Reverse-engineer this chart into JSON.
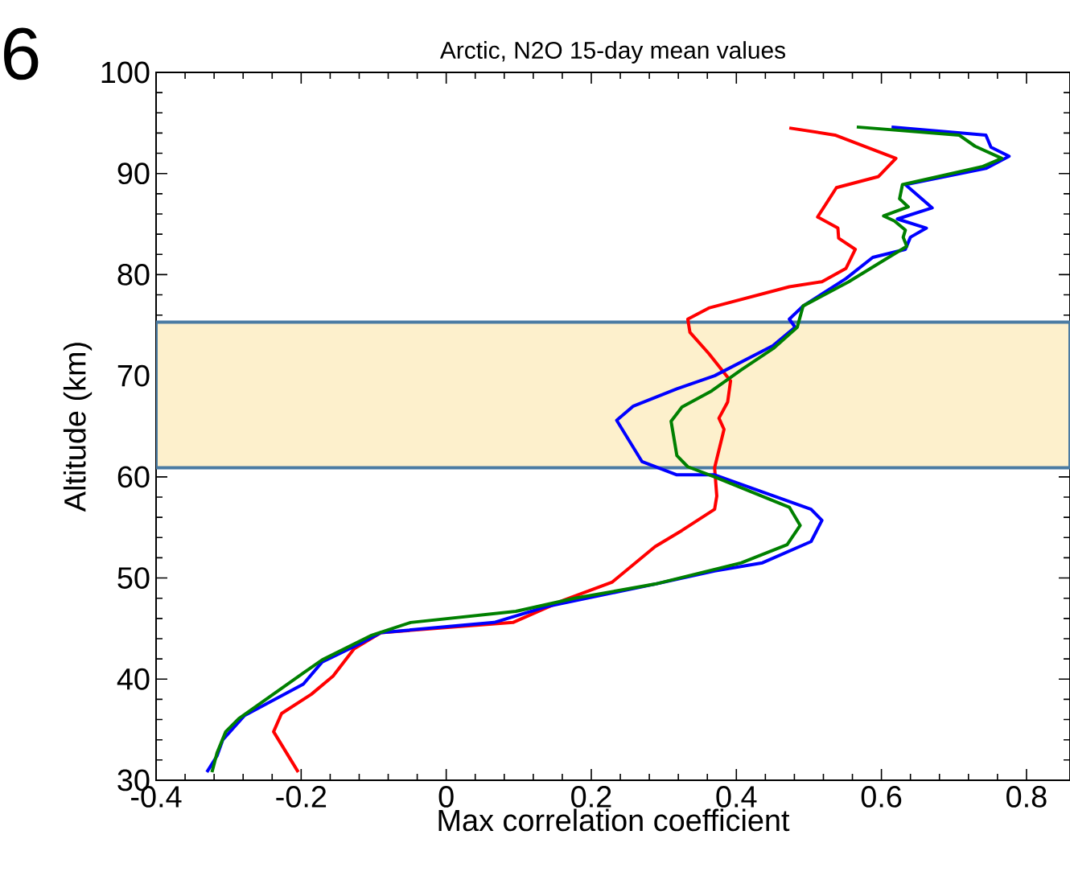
{
  "chart_data": {
    "type": "line",
    "title": "Arctic, N2O 15-day mean values",
    "xlabel": "Max correlation coefficient",
    "ylabel": "Altitude (km)",
    "xlim": [
      -0.4,
      0.86
    ],
    "ylim": [
      30,
      100
    ],
    "xticks": [
      -0.4,
      -0.2,
      0,
      0.2,
      0.4,
      0.6,
      0.8
    ],
    "yticks": [
      30,
      40,
      50,
      60,
      70,
      80,
      90,
      100
    ],
    "annotations": [
      "6"
    ],
    "bands": [
      {
        "axis": "y",
        "from": 60.9,
        "to": 75.3,
        "color": "#fdf0cc"
      }
    ],
    "series": [
      {
        "color": "#ff0000",
        "x": [
          0.473,
          0.536,
          0.62,
          0.596,
          0.538,
          0.512,
          0.54,
          0.541,
          0.564,
          0.551,
          0.518,
          0.473,
          0.362,
          0.333,
          0.336,
          0.362,
          0.392,
          0.388,
          0.376,
          0.383,
          0.37,
          0.373,
          0.37,
          0.325,
          0.288,
          0.229,
          0.162,
          0.092,
          -0.09,
          -0.127,
          -0.156,
          -0.186,
          -0.227,
          -0.238,
          -0.204
        ],
        "values": [
          94.5,
          93.8,
          91.5,
          89.7,
          88.6,
          85.7,
          84.6,
          83.6,
          82.5,
          80.6,
          79.3,
          78.8,
          76.7,
          75.6,
          74.3,
          72.2,
          69.5,
          67.4,
          65.8,
          64.7,
          60.9,
          58.1,
          56.8,
          54.7,
          53.1,
          49.6,
          47.8,
          45.6,
          44.6,
          43.0,
          40.3,
          38.5,
          36.6,
          34.8,
          30.8
        ]
      },
      {
        "color": "#0000ff",
        "x": [
          0.614,
          0.744,
          0.751,
          0.776,
          0.744,
          0.633,
          0.67,
          0.622,
          0.662,
          0.64,
          0.633,
          0.588,
          0.551,
          0.492,
          0.473,
          0.481,
          0.451,
          0.37,
          0.318,
          0.258,
          0.235,
          0.27,
          0.318,
          0.37,
          0.503,
          0.518,
          0.503,
          0.436,
          0.37,
          0.288,
          0.14,
          0.066,
          -0.09,
          -0.119,
          -0.171,
          -0.197,
          -0.278,
          -0.308,
          -0.316,
          -0.33
        ],
        "values": [
          94.6,
          93.8,
          92.6,
          91.7,
          90.5,
          88.9,
          86.6,
          85.5,
          84.6,
          83.7,
          82.5,
          81.7,
          79.6,
          76.9,
          75.6,
          74.8,
          73.0,
          70.0,
          68.7,
          67.0,
          65.6,
          61.5,
          60.2,
          60.2,
          56.8,
          55.7,
          53.6,
          51.5,
          50.7,
          49.4,
          47.2,
          45.6,
          44.6,
          43.5,
          41.7,
          39.5,
          36.4,
          34.0,
          32.4,
          30.8
        ]
      },
      {
        "color": "#008000",
        "x": [
          0.566,
          0.707,
          0.729,
          0.766,
          0.74,
          0.629,
          0.625,
          0.637,
          0.603,
          0.618,
          0.633,
          0.63,
          0.635,
          0.603,
          0.555,
          0.492,
          0.484,
          0.451,
          0.407,
          0.366,
          0.325,
          0.31,
          0.318,
          0.333,
          0.37,
          0.473,
          0.488,
          0.47,
          0.407,
          0.288,
          0.177,
          0.096,
          -0.049,
          -0.104,
          -0.171,
          -0.197,
          -0.286,
          -0.304,
          -0.316,
          -0.323
        ],
        "values": [
          94.6,
          93.8,
          92.7,
          91.5,
          90.7,
          88.9,
          87.5,
          86.7,
          85.8,
          85.3,
          84.4,
          83.7,
          82.8,
          81.4,
          79.3,
          76.9,
          74.8,
          72.7,
          70.6,
          68.5,
          66.9,
          65.5,
          62.1,
          61.0,
          60.0,
          57.0,
          55.2,
          53.3,
          51.5,
          49.4,
          48.0,
          46.7,
          45.6,
          44.3,
          41.9,
          40.6,
          36.1,
          34.8,
          32.7,
          30.8
        ]
      }
    ]
  }
}
